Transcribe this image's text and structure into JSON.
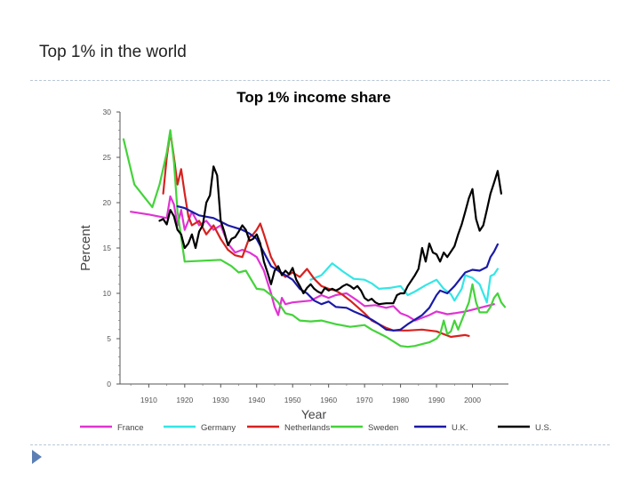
{
  "slide": {
    "title": "Top 1% in the world"
  },
  "colors": {
    "France": "#e033d3",
    "Germany": "#33e6e6",
    "Netherlands": "#d6221f",
    "Sweden": "#44d33a",
    "U.K.": "#1a1aa8",
    "U.S.": "#000000",
    "separator": "#b9c7d6",
    "bullet": "#5b7fb5"
  },
  "chart_data": {
    "type": "line",
    "title": "Top 1% income share",
    "xlabel": "Year",
    "ylabel": "Percent",
    "xlim": [
      1902,
      2010
    ],
    "ylim": [
      0,
      30
    ],
    "x_ticks": [
      1910,
      1920,
      1930,
      1940,
      1950,
      1960,
      1970,
      1980,
      1990,
      2000
    ],
    "x_tick_labels": [
      "1910",
      "1920",
      "1930",
      "1940",
      "1950",
      "1960",
      "1970",
      "1980",
      "1990",
      "2000"
    ],
    "y_ticks": [
      0,
      5,
      10,
      15,
      20,
      25,
      30
    ],
    "y_tick_labels": [
      "0",
      "5",
      "10",
      "15",
      "20",
      "25",
      "30"
    ],
    "grid": false,
    "legend_position": "bottom",
    "series": [
      {
        "name": "France",
        "points": [
          [
            1905,
            19.0
          ],
          [
            1910,
            18.7
          ],
          [
            1915,
            18.3
          ],
          [
            1916,
            20.7
          ],
          [
            1917,
            19.8
          ],
          [
            1918,
            17.5
          ],
          [
            1919,
            19.2
          ],
          [
            1920,
            17.0
          ],
          [
            1922,
            19.0
          ],
          [
            1924,
            17.5
          ],
          [
            1926,
            18.0
          ],
          [
            1928,
            17.0
          ],
          [
            1930,
            17.5
          ],
          [
            1932,
            15.5
          ],
          [
            1934,
            14.5
          ],
          [
            1936,
            14.8
          ],
          [
            1938,
            14.5
          ],
          [
            1940,
            14.0
          ],
          [
            1942,
            12.5
          ],
          [
            1944,
            10.0
          ],
          [
            1945,
            8.5
          ],
          [
            1946,
            7.6
          ],
          [
            1947,
            9.5
          ],
          [
            1948,
            8.8
          ],
          [
            1950,
            9.0
          ],
          [
            1955,
            9.2
          ],
          [
            1958,
            9.8
          ],
          [
            1960,
            9.5
          ],
          [
            1962,
            9.8
          ],
          [
            1965,
            10.0
          ],
          [
            1968,
            9.2
          ],
          [
            1970,
            8.6
          ],
          [
            1973,
            8.7
          ],
          [
            1976,
            8.4
          ],
          [
            1978,
            8.6
          ],
          [
            1980,
            7.8
          ],
          [
            1982,
            7.5
          ],
          [
            1984,
            7.0
          ],
          [
            1986,
            7.3
          ],
          [
            1988,
            7.6
          ],
          [
            1990,
            8.0
          ],
          [
            1993,
            7.7
          ],
          [
            1995,
            7.8
          ],
          [
            1998,
            8.0
          ],
          [
            2000,
            8.2
          ],
          [
            2003,
            8.5
          ],
          [
            2006,
            8.8
          ]
        ]
      },
      {
        "name": "Germany",
        "points": [
          [
            1955,
            11.5
          ],
          [
            1958,
            12.0
          ],
          [
            1961,
            13.3
          ],
          [
            1964,
            12.4
          ],
          [
            1967,
            11.6
          ],
          [
            1970,
            11.5
          ],
          [
            1972,
            11.1
          ],
          [
            1974,
            10.5
          ],
          [
            1977,
            10.6
          ],
          [
            1980,
            10.8
          ],
          [
            1982,
            9.8
          ],
          [
            1984,
            10.2
          ],
          [
            1987,
            10.9
          ],
          [
            1990,
            11.5
          ],
          [
            1992,
            10.5
          ],
          [
            1994,
            9.9
          ],
          [
            1995,
            9.2
          ],
          [
            1997,
            10.5
          ],
          [
            1998,
            12.0
          ],
          [
            2000,
            11.7
          ],
          [
            2002,
            11.0
          ],
          [
            2004,
            9.0
          ],
          [
            2005,
            11.9
          ],
          [
            2006,
            12.1
          ],
          [
            2007,
            12.7
          ]
        ]
      },
      {
        "name": "Netherlands",
        "points": [
          [
            1914,
            21.0
          ],
          [
            1915,
            25.0
          ],
          [
            1916,
            27.8
          ],
          [
            1917,
            25.0
          ],
          [
            1918,
            22.0
          ],
          [
            1919,
            23.7
          ],
          [
            1920,
            21.0
          ],
          [
            1921,
            18.5
          ],
          [
            1922,
            17.5
          ],
          [
            1924,
            18.0
          ],
          [
            1926,
            16.5
          ],
          [
            1928,
            17.5
          ],
          [
            1930,
            16.0
          ],
          [
            1932,
            14.8
          ],
          [
            1934,
            14.2
          ],
          [
            1936,
            14.0
          ],
          [
            1938,
            16.2
          ],
          [
            1939,
            16.5
          ],
          [
            1940,
            17.0
          ],
          [
            1941,
            17.7
          ],
          [
            1942,
            16.5
          ],
          [
            1944,
            14.0
          ],
          [
            1946,
            12.5
          ],
          [
            1948,
            11.8
          ],
          [
            1950,
            12.3
          ],
          [
            1952,
            11.8
          ],
          [
            1954,
            12.7
          ],
          [
            1956,
            11.6
          ],
          [
            1958,
            10.8
          ],
          [
            1960,
            10.5
          ],
          [
            1962,
            10.3
          ],
          [
            1964,
            9.8
          ],
          [
            1966,
            9.2
          ],
          [
            1968,
            8.5
          ],
          [
            1970,
            7.8
          ],
          [
            1972,
            7.0
          ],
          [
            1974,
            6.6
          ],
          [
            1976,
            6.2
          ],
          [
            1978,
            5.9
          ],
          [
            1982,
            5.9
          ],
          [
            1986,
            6.0
          ],
          [
            1990,
            5.8
          ],
          [
            1994,
            5.2
          ],
          [
            1998,
            5.4
          ],
          [
            1999,
            5.3
          ]
        ]
      },
      {
        "name": "Sweden",
        "points": [
          [
            1903,
            27.0
          ],
          [
            1906,
            22.0
          ],
          [
            1909,
            20.5
          ],
          [
            1911,
            19.5
          ],
          [
            1913,
            22.0
          ],
          [
            1915,
            25.5
          ],
          [
            1916,
            28.0
          ],
          [
            1917,
            24.5
          ],
          [
            1918,
            19.0
          ],
          [
            1920,
            13.5
          ],
          [
            1925,
            13.6
          ],
          [
            1930,
            13.7
          ],
          [
            1933,
            13.0
          ],
          [
            1935,
            12.3
          ],
          [
            1937,
            12.5
          ],
          [
            1940,
            10.5
          ],
          [
            1942,
            10.4
          ],
          [
            1944,
            9.8
          ],
          [
            1946,
            9.0
          ],
          [
            1948,
            7.8
          ],
          [
            1950,
            7.6
          ],
          [
            1952,
            7.0
          ],
          [
            1955,
            6.9
          ],
          [
            1958,
            7.0
          ],
          [
            1962,
            6.6
          ],
          [
            1966,
            6.3
          ],
          [
            1970,
            6.5
          ],
          [
            1972,
            6.0
          ],
          [
            1974,
            5.6
          ],
          [
            1976,
            5.2
          ],
          [
            1978,
            4.7
          ],
          [
            1980,
            4.2
          ],
          [
            1982,
            4.1
          ],
          [
            1984,
            4.2
          ],
          [
            1986,
            4.4
          ],
          [
            1988,
            4.6
          ],
          [
            1990,
            5.0
          ],
          [
            1991,
            5.5
          ],
          [
            1992,
            7.0
          ],
          [
            1993,
            5.5
          ],
          [
            1994,
            5.8
          ],
          [
            1995,
            7.0
          ],
          [
            1996,
            6.0
          ],
          [
            1997,
            7.0
          ],
          [
            1998,
            8.0
          ],
          [
            1999,
            9.0
          ],
          [
            2000,
            11.0
          ],
          [
            2001,
            9.0
          ],
          [
            2002,
            7.9
          ],
          [
            2004,
            7.9
          ],
          [
            2005,
            8.5
          ],
          [
            2006,
            9.5
          ],
          [
            2007,
            10.0
          ],
          [
            2008,
            9.0
          ],
          [
            2009,
            8.5
          ]
        ]
      },
      {
        "name": "U.K.",
        "points": [
          [
            1918,
            19.6
          ],
          [
            1920,
            19.4
          ],
          [
            1924,
            18.6
          ],
          [
            1928,
            18.3
          ],
          [
            1932,
            17.5
          ],
          [
            1936,
            17.0
          ],
          [
            1938,
            16.6
          ],
          [
            1940,
            16.0
          ],
          [
            1942,
            14.5
          ],
          [
            1944,
            13.0
          ],
          [
            1946,
            12.5
          ],
          [
            1948,
            12.0
          ],
          [
            1950,
            11.5
          ],
          [
            1952,
            10.5
          ],
          [
            1954,
            10.0
          ],
          [
            1956,
            9.2
          ],
          [
            1958,
            8.8
          ],
          [
            1960,
            9.1
          ],
          [
            1962,
            8.5
          ],
          [
            1965,
            8.4
          ],
          [
            1967,
            8.0
          ],
          [
            1970,
            7.5
          ],
          [
            1972,
            7.1
          ],
          [
            1974,
            6.6
          ],
          [
            1976,
            6.0
          ],
          [
            1978,
            5.9
          ],
          [
            1980,
            6.0
          ],
          [
            1982,
            6.6
          ],
          [
            1984,
            7.1
          ],
          [
            1986,
            7.6
          ],
          [
            1988,
            8.4
          ],
          [
            1990,
            9.8
          ],
          [
            1991,
            10.3
          ],
          [
            1993,
            10.0
          ],
          [
            1995,
            10.8
          ],
          [
            1997,
            11.8
          ],
          [
            1998,
            12.3
          ],
          [
            2000,
            12.6
          ],
          [
            2002,
            12.5
          ],
          [
            2004,
            12.9
          ],
          [
            2005,
            14.0
          ],
          [
            2006,
            14.6
          ],
          [
            2007,
            15.4
          ]
        ]
      },
      {
        "name": "U.S.",
        "points": [
          [
            1913,
            18.0
          ],
          [
            1914,
            18.2
          ],
          [
            1915,
            17.6
          ],
          [
            1916,
            19.2
          ],
          [
            1917,
            18.5
          ],
          [
            1918,
            17.0
          ],
          [
            1919,
            16.5
          ],
          [
            1920,
            15.0
          ],
          [
            1921,
            15.5
          ],
          [
            1922,
            16.5
          ],
          [
            1923,
            15.0
          ],
          [
            1924,
            16.8
          ],
          [
            1925,
            17.5
          ],
          [
            1926,
            20.0
          ],
          [
            1927,
            20.8
          ],
          [
            1928,
            24.0
          ],
          [
            1929,
            23.0
          ],
          [
            1930,
            18.0
          ],
          [
            1931,
            16.8
          ],
          [
            1932,
            15.3
          ],
          [
            1933,
            16.0
          ],
          [
            1934,
            16.2
          ],
          [
            1935,
            16.8
          ],
          [
            1936,
            17.5
          ],
          [
            1937,
            17.0
          ],
          [
            1938,
            15.8
          ],
          [
            1939,
            16.0
          ],
          [
            1940,
            16.5
          ],
          [
            1941,
            15.5
          ],
          [
            1942,
            13.5
          ],
          [
            1943,
            12.3
          ],
          [
            1944,
            11.0
          ],
          [
            1945,
            12.5
          ],
          [
            1946,
            13.0
          ],
          [
            1947,
            12.0
          ],
          [
            1948,
            12.5
          ],
          [
            1949,
            12.1
          ],
          [
            1950,
            12.8
          ],
          [
            1951,
            11.5
          ],
          [
            1952,
            10.8
          ],
          [
            1953,
            10.0
          ],
          [
            1954,
            10.6
          ],
          [
            1955,
            11.0
          ],
          [
            1956,
            10.5
          ],
          [
            1957,
            10.2
          ],
          [
            1958,
            10.0
          ],
          [
            1959,
            10.6
          ],
          [
            1960,
            10.3
          ],
          [
            1961,
            10.5
          ],
          [
            1962,
            10.3
          ],
          [
            1963,
            10.5
          ],
          [
            1964,
            10.8
          ],
          [
            1965,
            11.0
          ],
          [
            1966,
            10.8
          ],
          [
            1967,
            10.5
          ],
          [
            1968,
            10.8
          ],
          [
            1969,
            10.3
          ],
          [
            1970,
            9.5
          ],
          [
            1971,
            9.2
          ],
          [
            1972,
            9.4
          ],
          [
            1973,
            9.0
          ],
          [
            1974,
            8.8
          ],
          [
            1976,
            8.9
          ],
          [
            1978,
            8.9
          ],
          [
            1979,
            9.8
          ],
          [
            1980,
            10.0
          ],
          [
            1981,
            10.0
          ],
          [
            1982,
            10.8
          ],
          [
            1984,
            12.0
          ],
          [
            1985,
            12.7
          ],
          [
            1986,
            15.0
          ],
          [
            1987,
            13.5
          ],
          [
            1988,
            15.5
          ],
          [
            1989,
            14.5
          ],
          [
            1990,
            14.3
          ],
          [
            1991,
            13.5
          ],
          [
            1992,
            14.5
          ],
          [
            1993,
            14.0
          ],
          [
            1995,
            15.2
          ],
          [
            1996,
            16.5
          ],
          [
            1997,
            17.6
          ],
          [
            1998,
            19.0
          ],
          [
            1999,
            20.5
          ],
          [
            2000,
            21.5
          ],
          [
            2001,
            18.2
          ],
          [
            2002,
            16.9
          ],
          [
            2003,
            17.5
          ],
          [
            2004,
            19.2
          ],
          [
            2005,
            21.0
          ],
          [
            2006,
            22.2
          ],
          [
            2007,
            23.5
          ],
          [
            2008,
            21.0
          ]
        ]
      }
    ]
  }
}
